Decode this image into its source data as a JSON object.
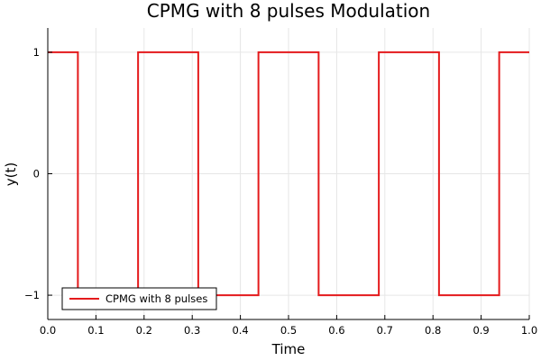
{
  "chart_data": {
    "type": "line",
    "title": "CPMG with 8 pulses Modulation",
    "xlabel": "Time",
    "ylabel": "y(t)",
    "xlim": [
      0.0,
      1.0
    ],
    "ylim": [
      -1.2,
      1.2
    ],
    "xticks": [
      0.0,
      0.1,
      0.2,
      0.3,
      0.4,
      0.5,
      0.6,
      0.7,
      0.8,
      0.9,
      1.0
    ],
    "xtick_labels": [
      "0.0",
      "0.1",
      "0.2",
      "0.3",
      "0.4",
      "0.5",
      "0.6",
      "0.7",
      "0.8",
      "0.9",
      "1.0"
    ],
    "yticks": [
      -1,
      0,
      1
    ],
    "ytick_labels": [
      "−1",
      "0",
      "1"
    ],
    "grid": true,
    "legend_position": "bottom-left",
    "series": [
      {
        "name": "CPMG with 8 pulses",
        "color": "#e41a1c",
        "step": true,
        "x": [
          0.0,
          0.0625,
          0.0625,
          0.1875,
          0.1875,
          0.3125,
          0.3125,
          0.4375,
          0.4375,
          0.5625,
          0.5625,
          0.6875,
          0.6875,
          0.8125,
          0.8125,
          0.9375,
          0.9375,
          1.0
        ],
        "y": [
          1,
          1,
          -1,
          -1,
          1,
          1,
          -1,
          -1,
          1,
          1,
          -1,
          -1,
          1,
          1,
          -1,
          -1,
          1,
          1
        ]
      }
    ]
  }
}
